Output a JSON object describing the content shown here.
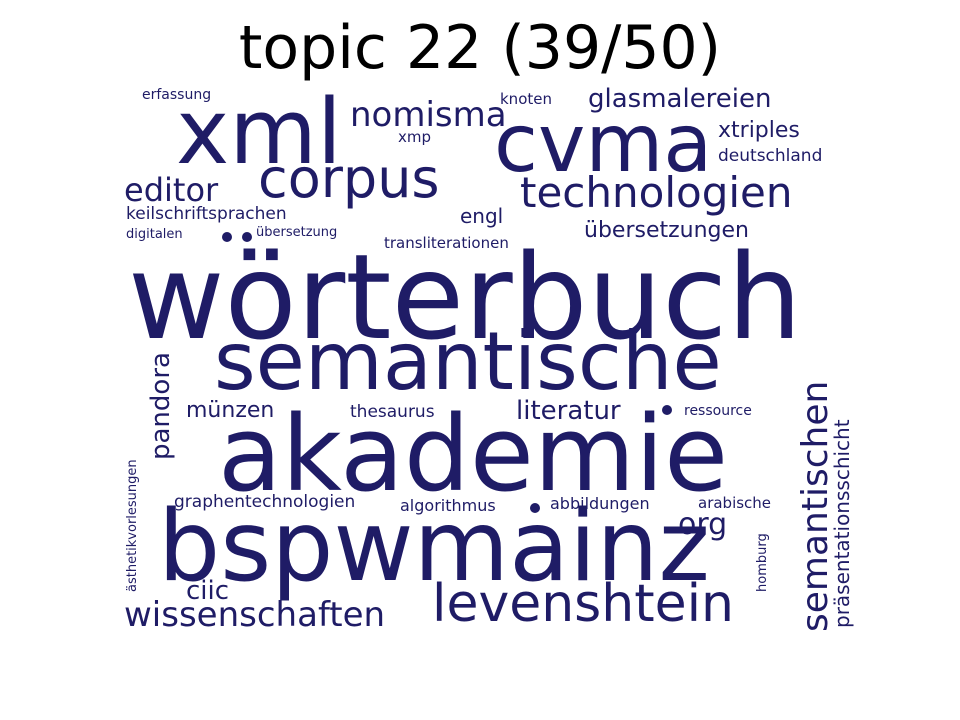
{
  "title": "topic 22 (39/50)",
  "word_color": "#1f1c66",
  "words": [
    {
      "text": "wörterbuch"
    },
    {
      "text": "akademie"
    },
    {
      "text": "semantische"
    },
    {
      "text": "bspwmainz"
    },
    {
      "text": "xml"
    },
    {
      "text": "cvma"
    },
    {
      "text": "corpus"
    },
    {
      "text": "levenshtein"
    },
    {
      "text": "technologien"
    },
    {
      "text": "wissenschaften"
    },
    {
      "text": "nomisma"
    },
    {
      "text": "editor"
    },
    {
      "text": "semantischen"
    },
    {
      "text": "glasmalereien"
    },
    {
      "text": "literatur"
    },
    {
      "text": "pandora"
    },
    {
      "text": "übersetzungen"
    },
    {
      "text": "münzen"
    },
    {
      "text": "xtriples"
    },
    {
      "text": "org"
    },
    {
      "text": "ciic"
    },
    {
      "text": "präsentationsschicht"
    },
    {
      "text": "keilschriftsprachen"
    },
    {
      "text": "engl"
    },
    {
      "text": "deutschland"
    },
    {
      "text": "graphentechnologien"
    },
    {
      "text": "thesaurus"
    },
    {
      "text": "algorithmus"
    },
    {
      "text": "abbildungen"
    },
    {
      "text": "transliterationen"
    },
    {
      "text": "knoten"
    },
    {
      "text": "arabische"
    },
    {
      "text": "ressource"
    },
    {
      "text": "xmp"
    },
    {
      "text": "erfassung"
    },
    {
      "text": "übersetzung"
    },
    {
      "text": "digitalen"
    },
    {
      "text": "ästhetikvorlesungen"
    },
    {
      "text": "homburg"
    }
  ]
}
